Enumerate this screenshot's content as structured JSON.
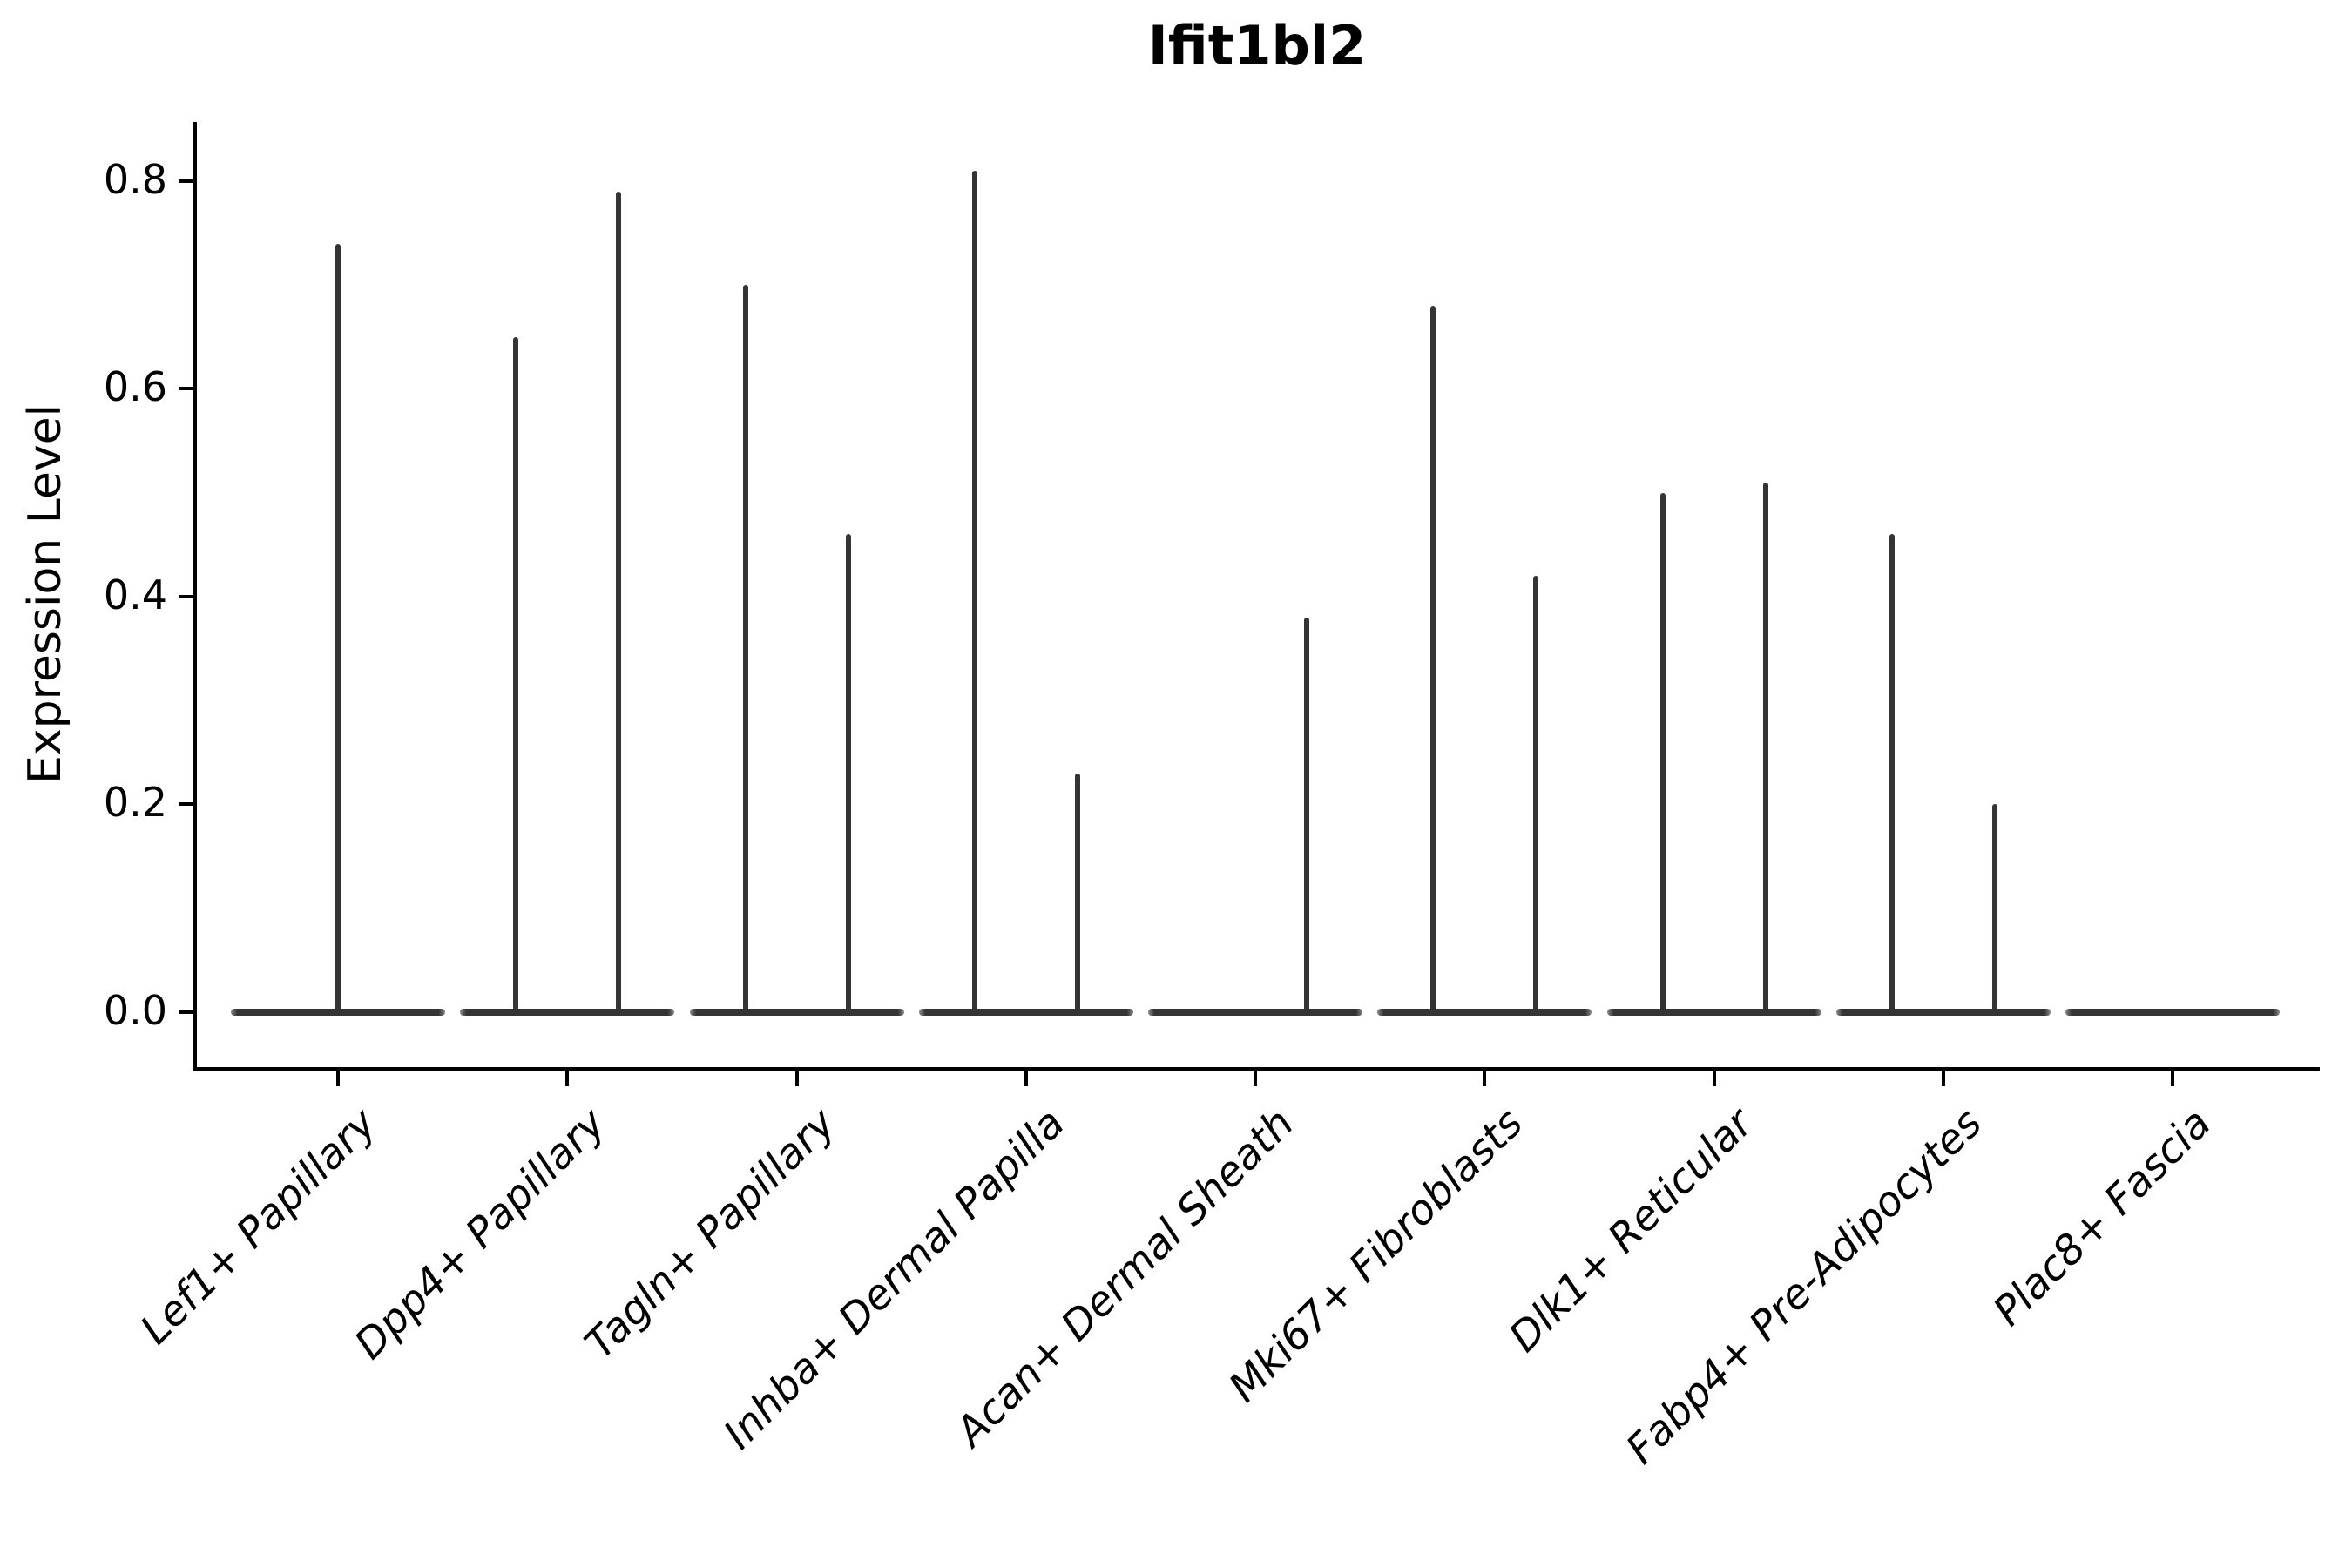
{
  "chart_data": {
    "type": "violin",
    "title": "Ifit1bl2",
    "ylabel": "Expression Level",
    "xlabel": "",
    "ylim": [
      -0.053,
      0.857
    ],
    "yticks": [
      0.0,
      0.2,
      0.4,
      0.6,
      0.8
    ],
    "ytick_labels": [
      "0.0",
      "0.2",
      "0.4",
      "0.6",
      "0.8"
    ],
    "grid": false,
    "legend": null,
    "description": "Violin plot of Ifit1bl2 expression per fibroblast subtype; each violin has nearly all density flat at 0 with a thin spike reaching the maximum expression value. Most categories contain two side-by-side violins (left/right); a centered single violin appears where only one group is present.",
    "categories": [
      {
        "label": "Lef1+ Papillary",
        "base_at_zero": true,
        "violins": [
          {
            "position": "center",
            "max": 0.74
          }
        ]
      },
      {
        "label": "Dpp4+ Papillary",
        "base_at_zero": true,
        "violins": [
          {
            "position": "left",
            "max": 0.65
          },
          {
            "position": "right",
            "max": 0.79
          }
        ]
      },
      {
        "label": "Tagln+ Papillary",
        "base_at_zero": true,
        "violins": [
          {
            "position": "left",
            "max": 0.7
          },
          {
            "position": "right",
            "max": 0.46
          }
        ]
      },
      {
        "label": "Inhba+ Dermal Papilla",
        "base_at_zero": true,
        "violins": [
          {
            "position": "left",
            "max": 0.81
          },
          {
            "position": "right",
            "max": 0.23
          }
        ]
      },
      {
        "label": "Acan+ Dermal Sheath",
        "base_at_zero": true,
        "violins": [
          {
            "position": "right",
            "max": 0.38
          }
        ]
      },
      {
        "label": "Mki67+ Fibroblasts",
        "base_at_zero": true,
        "violins": [
          {
            "position": "left",
            "max": 0.68
          },
          {
            "position": "right",
            "max": 0.42
          }
        ]
      },
      {
        "label": "Dlk1+ Reticular",
        "base_at_zero": true,
        "violins": [
          {
            "position": "left",
            "max": 0.5
          },
          {
            "position": "right",
            "max": 0.51
          }
        ]
      },
      {
        "label": "Fabp4+ Pre-Adipocytes",
        "base_at_zero": true,
        "violins": [
          {
            "position": "left",
            "max": 0.46
          },
          {
            "position": "right",
            "max": 0.2
          }
        ]
      },
      {
        "label": "Plac8+ Fascia",
        "base_at_zero": true,
        "violins": []
      }
    ],
    "colors": {
      "violin": "#343434",
      "axis": "#000000",
      "text": "#000000",
      "background": "#ffffff"
    }
  }
}
